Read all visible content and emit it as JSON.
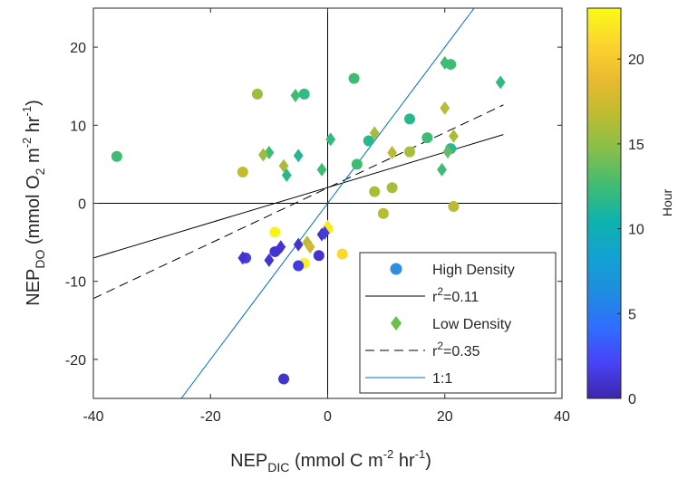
{
  "chart_data": {
    "type": "scatter",
    "xlim": [
      -40,
      40
    ],
    "ylim": [
      -25,
      25
    ],
    "x_ticks": [
      -40,
      -20,
      0,
      20,
      40
    ],
    "y_ticks": [
      -20,
      -10,
      0,
      10,
      20
    ],
    "xlabel": {
      "main": "NEP",
      "sub": "DIC",
      "rest": " (mmol C m",
      "sup": "-2",
      "tail": " hr",
      "sup2": "-1",
      "end": ")"
    },
    "ylabel": {
      "main": "NEP",
      "sub": "DO",
      "rest": " (mmol O",
      "sub2": "2",
      "mid": " m",
      "sup": "-2",
      "tail": " hr",
      "sup2": "-1",
      "end": ")"
    },
    "grid": false,
    "colorbar": {
      "label": "Hour",
      "range": [
        0,
        23
      ],
      "ticks": [
        0,
        5,
        10,
        15,
        20
      ],
      "colors": [
        "#3e26a8",
        "#4743f8",
        "#2f6efe",
        "#1f8ddf",
        "#12a2d2",
        "#0fb3ad",
        "#40bc72",
        "#85bf4b",
        "#bdbc31",
        "#eaba30",
        "#fcd52f",
        "#f9fb15"
      ]
    },
    "legend": {
      "position": "bottom-right",
      "entries": [
        {
          "label": "High Density",
          "symbol": "circle",
          "color": "#2f8ee0"
        },
        {
          "label": "r",
          "sup": "2",
          "rest": "=0.11",
          "symbol": "solid-line",
          "color": "#000000"
        },
        {
          "label": "Low Density",
          "symbol": "diamond",
          "color": "#6cc04a"
        },
        {
          "label": "r",
          "sup": "2",
          "rest": "=0.35",
          "symbol": "dashed-line",
          "color": "#000000"
        },
        {
          "label": "1:1",
          "symbol": "line",
          "color": "#0072bd"
        }
      ]
    },
    "fit_lines": [
      {
        "name": "r2=0.11",
        "style": "solid",
        "color": "#000000",
        "x": [
          -40,
          30
        ],
        "y": [
          -7,
          8.8
        ]
      },
      {
        "name": "r2=0.35",
        "style": "dashed",
        "color": "#000000",
        "x": [
          -40,
          30
        ],
        "y": [
          -12.2,
          12.6
        ]
      },
      {
        "name": "1:1",
        "style": "solid",
        "color": "#0072bd",
        "x": [
          -25,
          25
        ],
        "y": [
          -25,
          25
        ]
      }
    ],
    "series": [
      {
        "name": "High Density",
        "marker": "circle",
        "points": [
          {
            "x": -36.0,
            "y": 6.0,
            "hour": 12.5
          },
          {
            "x": -12.0,
            "y": 14.0,
            "hour": 15.5
          },
          {
            "x": -4.0,
            "y": 14.0,
            "hour": 12.0
          },
          {
            "x": 4.5,
            "y": 16.0,
            "hour": 12.5
          },
          {
            "x": 14.0,
            "y": 10.8,
            "hour": 11.5
          },
          {
            "x": 21.0,
            "y": 17.8,
            "hour": 12.5
          },
          {
            "x": 5.0,
            "y": 5.0,
            "hour": 12.5
          },
          {
            "x": 7.0,
            "y": 8.0,
            "hour": 11.5
          },
          {
            "x": 17.0,
            "y": 8.4,
            "hour": 12.5
          },
          {
            "x": 21.0,
            "y": 7.0,
            "hour": 11.5
          },
          {
            "x": -14.5,
            "y": 4.0,
            "hour": 17.0
          },
          {
            "x": 8.0,
            "y": 1.5,
            "hour": 16.0
          },
          {
            "x": 11.0,
            "y": 2.0,
            "hour": 16.0
          },
          {
            "x": 9.5,
            "y": -1.3,
            "hour": 16.5
          },
          {
            "x": 14.0,
            "y": 6.6,
            "hour": 16.0
          },
          {
            "x": 21.5,
            "y": -0.4,
            "hour": 16.5
          },
          {
            "x": -9.0,
            "y": -3.7,
            "hour": 22.5
          },
          {
            "x": 2.5,
            "y": -6.5,
            "hour": 21.0
          },
          {
            "x": -4.0,
            "y": -7.7,
            "hour": 22.5
          },
          {
            "x": -5.0,
            "y": -8.0,
            "hour": 1.5
          },
          {
            "x": -9.0,
            "y": -6.2,
            "hour": 1.0
          },
          {
            "x": -1.5,
            "y": -6.7,
            "hour": 1.0
          },
          {
            "x": -14.0,
            "y": -7.0,
            "hour": 1.5
          },
          {
            "x": -7.5,
            "y": -22.5,
            "hour": 1.0
          },
          {
            "x": 0.0,
            "y": -3.3,
            "hour": 22.5
          }
        ]
      },
      {
        "name": "Low Density",
        "marker": "diamond",
        "points": [
          {
            "x": -5.5,
            "y": 13.8,
            "hour": 12.5
          },
          {
            "x": -10.0,
            "y": 6.5,
            "hour": 12.5
          },
          {
            "x": -11.0,
            "y": 6.2,
            "hour": 15.5
          },
          {
            "x": -5.0,
            "y": 6.1,
            "hour": 11.5
          },
          {
            "x": -7.5,
            "y": 4.8,
            "hour": 16.0
          },
          {
            "x": -7.0,
            "y": 3.6,
            "hour": 11.5
          },
          {
            "x": -1.0,
            "y": 4.3,
            "hour": 12.5
          },
          {
            "x": 0.5,
            "y": 8.2,
            "hour": 12.0
          },
          {
            "x": 8.0,
            "y": 9.0,
            "hour": 16.0
          },
          {
            "x": 11.0,
            "y": 6.5,
            "hour": 16.5
          },
          {
            "x": 20.0,
            "y": 18.0,
            "hour": 12.5
          },
          {
            "x": 20.0,
            "y": 12.2,
            "hour": 16.5
          },
          {
            "x": 19.5,
            "y": 4.3,
            "hour": 12.5
          },
          {
            "x": 20.5,
            "y": 6.6,
            "hour": 13.5
          },
          {
            "x": 21.5,
            "y": 8.6,
            "hour": 16.0
          },
          {
            "x": 29.5,
            "y": 15.5,
            "hour": 12.0
          },
          {
            "x": -3.5,
            "y": -5.0,
            "hour": 16.5
          },
          {
            "x": -3.0,
            "y": -5.6,
            "hour": 17.5
          },
          {
            "x": 0.0,
            "y": -3.0,
            "hour": 22.0
          },
          {
            "x": -1.0,
            "y": -4.0,
            "hour": 1.0
          },
          {
            "x": -0.5,
            "y": -3.8,
            "hour": 1.5
          },
          {
            "x": -8.0,
            "y": -5.6,
            "hour": 1.0
          },
          {
            "x": -5.0,
            "y": -5.3,
            "hour": 1.0
          },
          {
            "x": -14.5,
            "y": -7.0,
            "hour": 1.0
          },
          {
            "x": -10.0,
            "y": -7.3,
            "hour": 1.0
          }
        ]
      }
    ]
  }
}
